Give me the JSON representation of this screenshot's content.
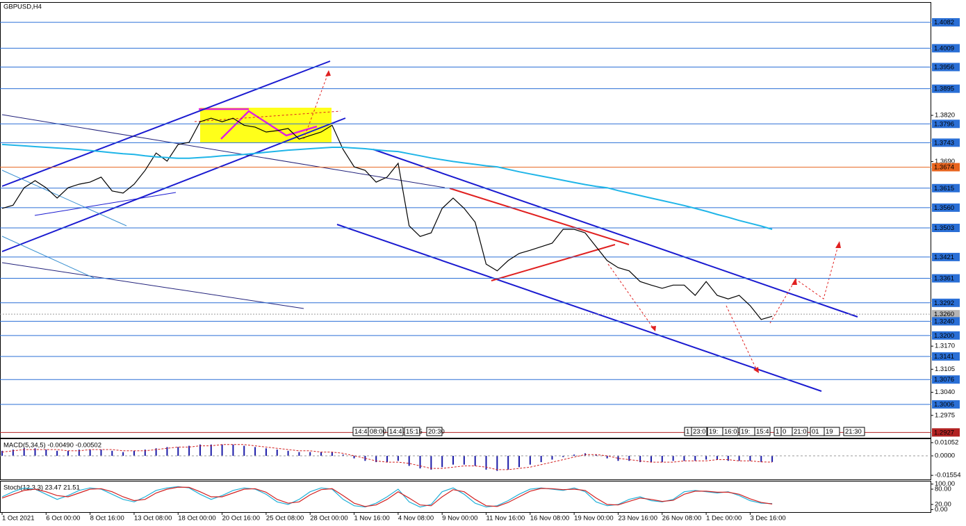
{
  "chart_data": [
    {
      "type": "line",
      "title": "GBPUSD,H4",
      "categories": [
        "1 Oct 2021",
        null,
        null,
        null,
        "6 Oct 00:00",
        null,
        null,
        null,
        "8 Oct 16:00",
        null,
        null,
        null,
        "13 Oct 08:00",
        null,
        null,
        null,
        "18 Oct 00:00",
        null,
        null,
        null,
        "20 Oct 16:00",
        null,
        null,
        null,
        "25 Oct 08:00",
        null,
        null,
        null,
        "28 Oct 00:00",
        null,
        null,
        null,
        "1 Nov 16:00",
        null,
        null,
        null,
        "4 Nov 08:00",
        null,
        null,
        null,
        "9 Nov 00:00",
        null,
        null,
        null,
        "11 Nov 16:00",
        null,
        null,
        null,
        "16 Nov 08:00",
        null,
        null,
        null,
        "19 Nov 00:00",
        null,
        null,
        null,
        "23 Nov 16:00",
        null,
        null,
        null,
        "26 Nov 08:00",
        null,
        null,
        null,
        "1 Dec 00:00",
        null,
        null,
        null,
        "3 Dec 16:00",
        null,
        null
      ],
      "series": [
        {
          "color": "#000000",
          "values": [
            1.3558,
            1.3567,
            1.3616,
            1.3636,
            1.3616,
            1.3587,
            1.3616,
            1.3626,
            1.3632,
            1.3646,
            1.3607,
            1.3601,
            1.3626,
            1.3665,
            1.3714,
            1.3691,
            1.3738,
            1.3744,
            1.3802,
            1.3812,
            1.3802,
            1.3812,
            1.3792,
            1.3787,
            1.3773,
            1.3777,
            1.3783,
            1.3753,
            1.3763,
            1.3773,
            1.3792,
            1.3724,
            1.3675,
            1.3665,
            1.3632,
            1.3646,
            1.3685,
            1.3509,
            1.3479,
            1.3489,
            1.3558,
            1.3587,
            1.3558,
            1.3519,
            1.3401,
            1.3382,
            1.3411,
            1.3431,
            1.344,
            1.345,
            1.346,
            1.3499,
            1.3499,
            1.3489,
            1.345,
            1.3411,
            1.3391,
            1.3382,
            1.3352,
            1.3342,
            1.3333,
            1.3342,
            1.3342,
            1.3313,
            1.3352,
            1.3313,
            1.3303,
            1.3313,
            1.3284,
            1.3245,
            1.3254
          ]
        },
        {
          "color": "#1fb5e8",
          "values": [
            1.3738,
            1.3736,
            1.3734,
            1.3732,
            1.373,
            1.3728,
            1.3726,
            1.3724,
            1.3721,
            1.3718,
            1.3715,
            1.3712,
            1.371,
            1.3706,
            1.3703,
            1.3701,
            1.3699,
            1.3699,
            1.3701,
            1.3703,
            1.3706,
            1.3708,
            1.371,
            1.3713,
            1.3716,
            1.3719,
            1.3722,
            1.3724,
            1.3726,
            1.3728,
            1.373,
            1.373,
            1.3728,
            1.3726,
            1.3723,
            1.372,
            1.3718,
            1.3712,
            1.3706,
            1.37,
            1.3695,
            1.369,
            1.3686,
            1.3682,
            1.3678,
            1.3675,
            1.3668,
            1.3661,
            1.3655,
            1.3649,
            1.3643,
            1.3637,
            1.3631,
            1.3625,
            1.362,
            1.3616,
            1.3608,
            1.3601,
            1.3594,
            1.3587,
            1.358,
            1.3573,
            1.3566,
            1.3558,
            1.355,
            1.3541,
            1.3533,
            1.3524,
            1.3516,
            1.3508,
            1.3499
          ]
        }
      ],
      "ylim": [
        1.2912,
        1.4137
      ],
      "yticks": [
        {
          "value": 1.382,
          "label": "1.3820"
        },
        {
          "value": 1.369,
          "label": "1.3690"
        },
        {
          "value": 1.317,
          "label": "1.3170"
        },
        {
          "value": 1.3105,
          "label": "1.3105"
        },
        {
          "value": 1.304,
          "label": "1.3040"
        },
        {
          "value": 1.2975,
          "label": "1.2975"
        }
      ],
      "hlines": {
        "values": [
          1.4082,
          1.4009,
          1.3956,
          1.3895,
          1.3796,
          1.3743,
          1.3674,
          1.3615,
          1.356,
          1.3503,
          1.3421,
          1.3361,
          1.3292,
          1.326,
          1.324,
          1.32,
          1.3141,
          1.3076,
          1.3006,
          1.2927
        ],
        "value_labels": [
          "1.4082",
          "1.4009",
          "1.3956",
          "1.3895",
          "1.3796",
          "1.3743",
          "1.3674",
          "1.3615",
          "1.3560",
          "1.3503",
          "1.3421",
          "1.3361",
          "1.3292",
          "1.3260",
          "1.3240",
          "1.3200",
          "1.3141",
          "1.3076",
          "1.3006",
          "1.2927"
        ],
        "colors": [
          "#2a6fd6",
          "#2a6fd6",
          "#2a6fd6",
          "#2a6fd6",
          "#2a6fd6",
          "#2a6fd6",
          "#e8641e",
          "#2a6fd6",
          "#2a6fd6",
          "#2a6fd6",
          "#2a6fd6",
          "#2a6fd6",
          "#2a6fd6",
          "#b4b4b4",
          "#2a6fd6",
          "#2a6fd6",
          "#2a6fd6",
          "#2a6fd6",
          "#2a6fd6",
          "#b22222"
        ]
      },
      "time_tags": [
        "14:4",
        "08:00",
        "14:4",
        "15:15",
        "20:30",
        "1",
        "23:0",
        "19:",
        "16:0",
        "19:",
        "15:4",
        "1",
        "0",
        "21:0",
        "01",
        "19",
        "21:30"
      ]
    },
    {
      "type": "bar",
      "title": "MACD(5,34,5) -0.00490 -0.00502",
      "color": "#1a1aa8",
      "signal_color": "#d22020",
      "values": [
        0.004,
        0.005,
        0.006,
        0.006,
        0.005,
        0.004,
        0.004,
        0.005,
        0.005,
        0.005,
        0.004,
        0.003,
        0.004,
        0.005,
        0.006,
        0.007,
        0.007,
        0.008,
        0.009,
        0.009,
        0.009,
        0.009,
        0.008,
        0.007,
        0.006,
        0.005,
        0.004,
        0.003,
        0.003,
        0.003,
        0.003,
        0.001,
        -0.002,
        -0.004,
        -0.005,
        -0.005,
        -0.004,
        -0.008,
        -0.01,
        -0.011,
        -0.009,
        -0.007,
        -0.007,
        -0.008,
        -0.011,
        -0.012,
        -0.011,
        -0.009,
        -0.007,
        -0.005,
        -0.003,
        -0.001,
        0.001,
        0.002,
        0.001,
        -0.002,
        -0.004,
        -0.004,
        -0.005,
        -0.005,
        -0.005,
        -0.004,
        -0.004,
        -0.004,
        -0.003,
        -0.003,
        -0.004,
        -0.004,
        -0.004,
        -0.005,
        -0.0049
      ],
      "signal": [
        0.003,
        0.004,
        0.005,
        0.005,
        0.005,
        0.005,
        0.004,
        0.004,
        0.005,
        0.005,
        0.005,
        0.004,
        0.004,
        0.004,
        0.005,
        0.006,
        0.007,
        0.007,
        0.008,
        0.008,
        0.009,
        0.009,
        0.009,
        0.008,
        0.007,
        0.006,
        0.005,
        0.004,
        0.004,
        0.003,
        0.003,
        0.002,
        0,
        -0.002,
        -0.004,
        -0.005,
        -0.005,
        -0.006,
        -0.008,
        -0.01,
        -0.01,
        -0.009,
        -0.008,
        -0.008,
        -0.009,
        -0.011,
        -0.011,
        -0.01,
        -0.009,
        -0.007,
        -0.005,
        -0.003,
        -0.001,
        0.001,
        0.001,
        0,
        -0.002,
        -0.003,
        -0.004,
        -0.005,
        -0.005,
        -0.005,
        -0.004,
        -0.004,
        -0.004,
        -0.003,
        -0.003,
        -0.004,
        -0.004,
        -0.0048,
        -0.00502
      ],
      "ylim": [
        -0.0188,
        0.0133
      ],
      "yticks": [
        0.01052,
        {
          "value": 0,
          "label": "0.0000"
        },
        -0.01554
      ]
    },
    {
      "type": "line",
      "title": "Stoch(12,3,3) 23.47 21.51",
      "series": [
        {
          "color": "#20b0d8",
          "values": [
            50,
            70,
            85,
            80,
            60,
            40,
            55,
            75,
            85,
            80,
            60,
            40,
            30,
            50,
            75,
            85,
            90,
            85,
            60,
            40,
            55,
            75,
            85,
            80,
            60,
            30,
            20,
            40,
            70,
            85,
            80,
            40,
            15,
            10,
            25,
            50,
            80,
            30,
            10,
            20,
            70,
            85,
            60,
            25,
            10,
            15,
            35,
            60,
            80,
            85,
            80,
            75,
            85,
            70,
            30,
            15,
            20,
            40,
            50,
            35,
            30,
            40,
            70,
            75,
            70,
            65,
            70,
            55,
            35,
            25,
            23.47
          ]
        },
        {
          "color": "#d22020",
          "values": [
            45,
            60,
            75,
            80,
            70,
            55,
            50,
            65,
            80,
            82,
            70,
            50,
            35,
            40,
            65,
            80,
            88,
            87,
            70,
            50,
            50,
            65,
            80,
            82,
            68,
            40,
            25,
            30,
            58,
            78,
            82,
            55,
            25,
            12,
            18,
            40,
            70,
            45,
            18,
            15,
            50,
            78,
            70,
            40,
            15,
            12,
            28,
            50,
            72,
            83,
            82,
            78,
            80,
            75,
            45,
            20,
            18,
            32,
            45,
            40,
            32,
            36,
            60,
            72,
            72,
            68,
            68,
            60,
            42,
            28,
            21.51
          ]
        }
      ],
      "ylim": [
        -10,
        110
      ],
      "yticks": [
        {
          "value": 100,
          "label": "100.00"
        },
        {
          "value": 80,
          "label": "80.00"
        },
        {
          "value": 20,
          "label": "20.00"
        },
        {
          "value": 0,
          "label": "0.00"
        }
      ]
    }
  ]
}
